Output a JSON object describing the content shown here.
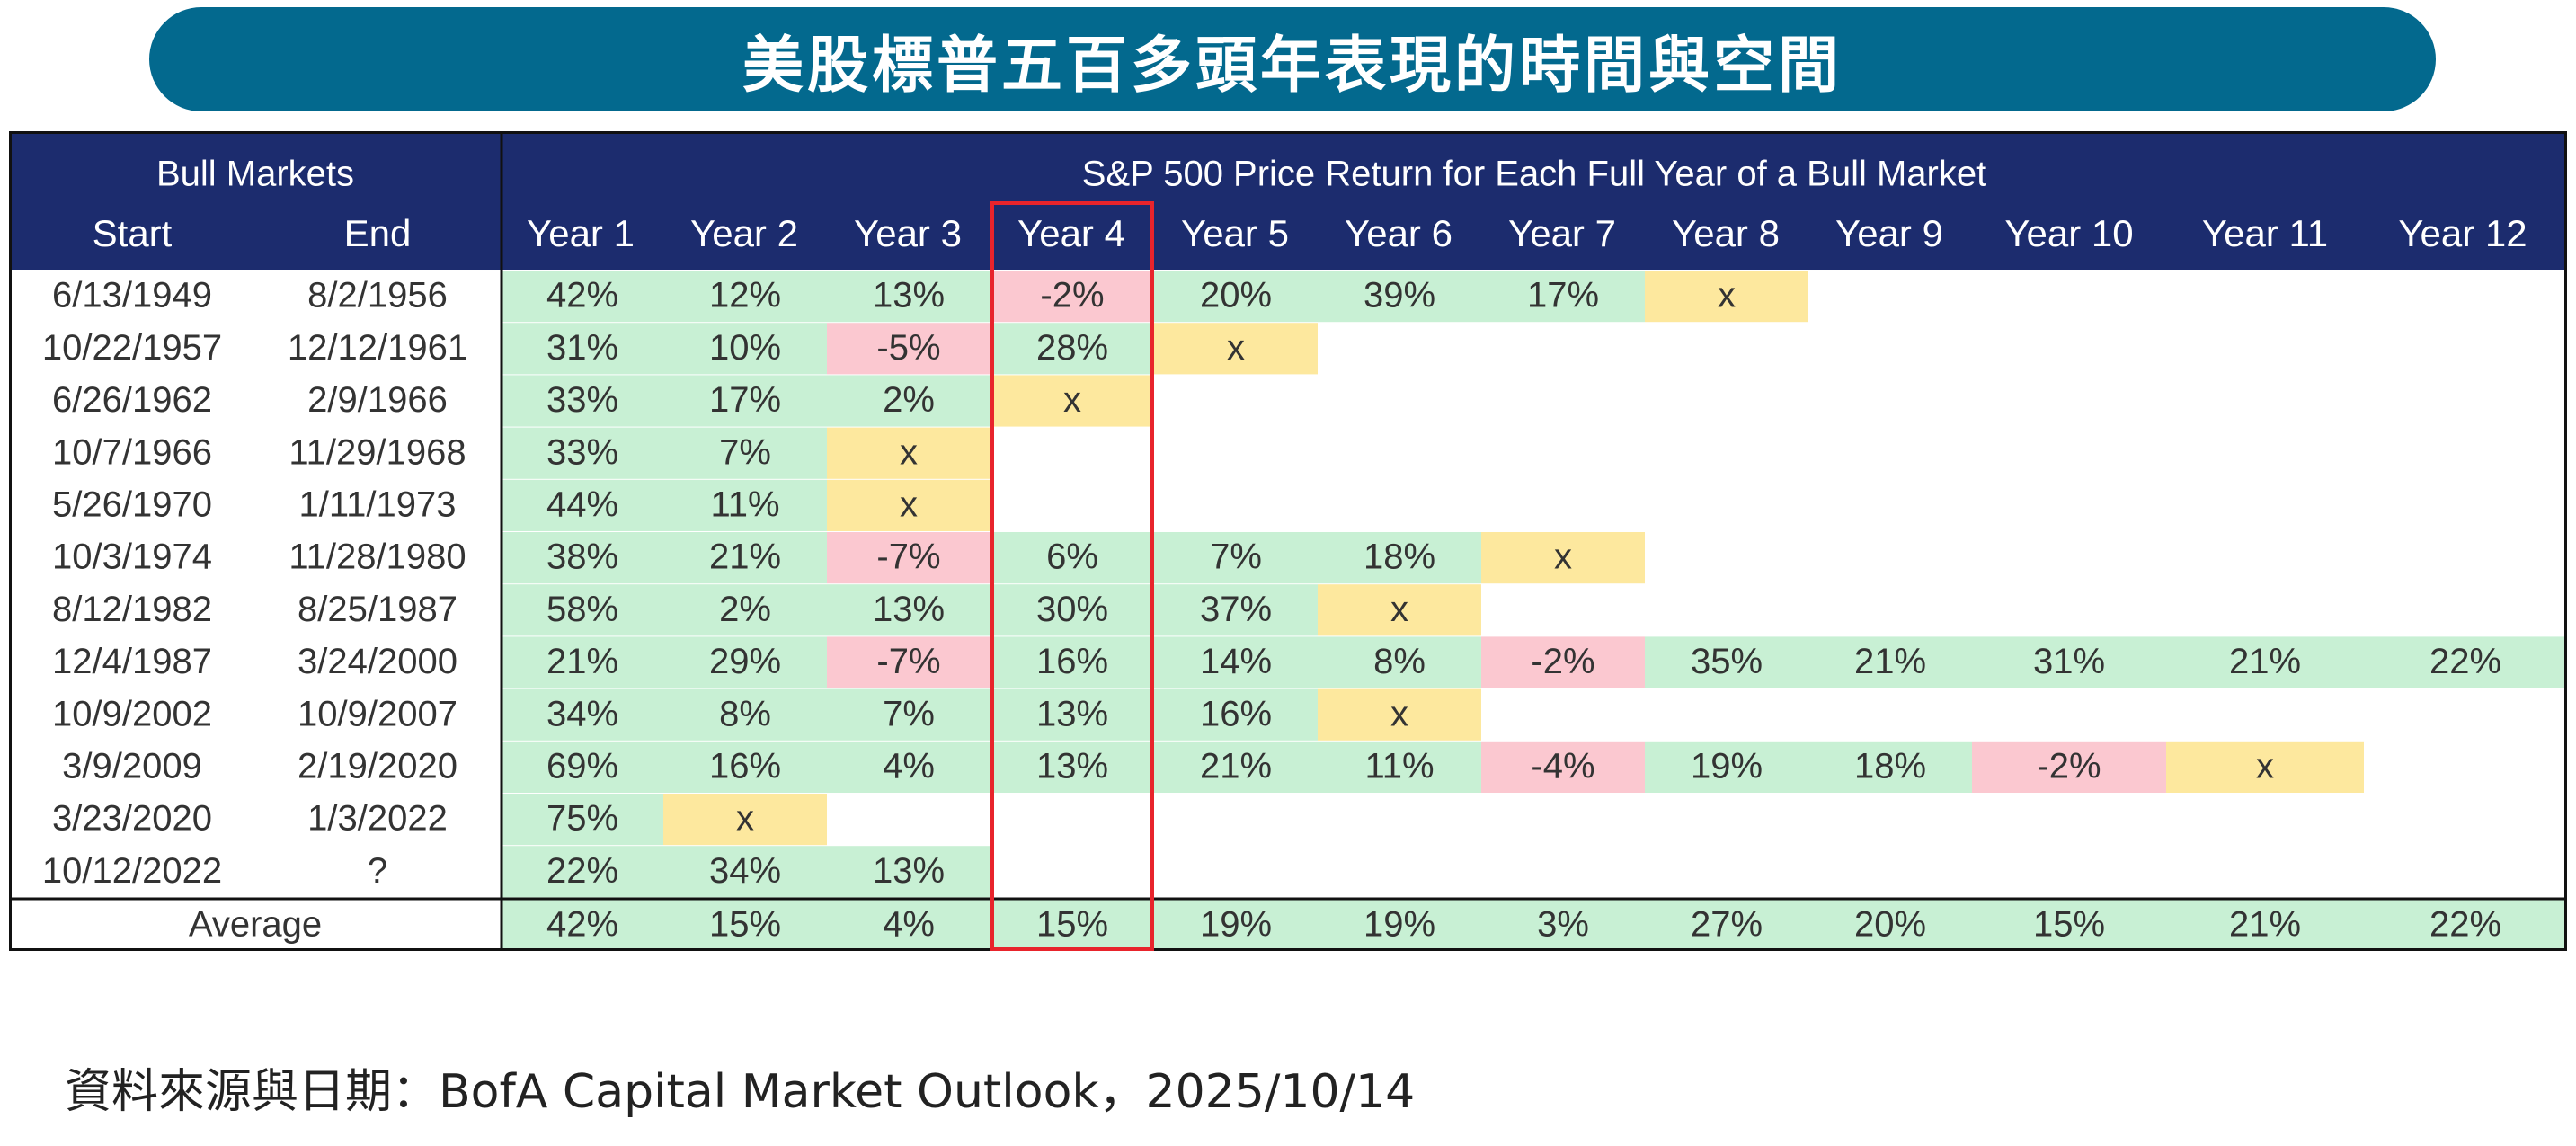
{
  "title": "美股標普五百多頭年表現的時間與空間",
  "source": "資料來源與日期：BofA Capital Market Outlook，2025/10/14",
  "colors": {
    "header_bg": "#1c2c6e",
    "header_text": "#ffffff",
    "positive": "#c8f0d4",
    "negative": "#fbc8d0",
    "end": "#fde89e",
    "highlight_border": "#e8242c",
    "text": "#333333"
  },
  "chart_data": {
    "type": "table",
    "header_group_left": "Bull Markets",
    "header_group_right": "S&P 500 Price Return for Each Full Year of a Bull Market",
    "columns": [
      "Start",
      "End",
      "Year 1",
      "Year 2",
      "Year 3",
      "Year 4",
      "Year 5",
      "Year 6",
      "Year 7",
      "Year 8",
      "Year 9",
      "Year 10",
      "Year 11",
      "Year 12"
    ],
    "highlight_column": "Year 4",
    "rows": [
      {
        "start": "6/13/1949",
        "end": "8/2/1956",
        "values": [
          "42%",
          "12%",
          "13%",
          "-2%",
          "20%",
          "39%",
          "17%",
          "x"
        ]
      },
      {
        "start": "10/22/1957",
        "end": "12/12/1961",
        "values": [
          "31%",
          "10%",
          "-5%",
          "28%",
          "x"
        ]
      },
      {
        "start": "6/26/1962",
        "end": "2/9/1966",
        "values": [
          "33%",
          "17%",
          "2%",
          "x"
        ]
      },
      {
        "start": "10/7/1966",
        "end": "11/29/1968",
        "values": [
          "33%",
          "7%",
          "x"
        ]
      },
      {
        "start": "5/26/1970",
        "end": "1/11/1973",
        "values": [
          "44%",
          "11%",
          "x"
        ]
      },
      {
        "start": "10/3/1974",
        "end": "11/28/1980",
        "values": [
          "38%",
          "21%",
          "-7%",
          "6%",
          "7%",
          "18%",
          "x"
        ]
      },
      {
        "start": "8/12/1982",
        "end": "8/25/1987",
        "values": [
          "58%",
          "2%",
          "13%",
          "30%",
          "37%",
          "x"
        ]
      },
      {
        "start": "12/4/1987",
        "end": "3/24/2000",
        "values": [
          "21%",
          "29%",
          "-7%",
          "16%",
          "14%",
          "8%",
          "-2%",
          "35%",
          "21%",
          "31%",
          "21%",
          "22%"
        ]
      },
      {
        "start": "10/9/2002",
        "end": "10/9/2007",
        "values": [
          "34%",
          "8%",
          "7%",
          "13%",
          "16%",
          "x"
        ]
      },
      {
        "start": "3/9/2009",
        "end": "2/19/2020",
        "values": [
          "69%",
          "16%",
          "4%",
          "13%",
          "21%",
          "11%",
          "-4%",
          "19%",
          "18%",
          "-2%",
          "x"
        ]
      },
      {
        "start": "3/23/2020",
        "end": "1/3/2022",
        "values": [
          "75%",
          "x"
        ]
      },
      {
        "start": "10/12/2022",
        "end": "?",
        "values": [
          "22%",
          "34%",
          "13%"
        ]
      }
    ],
    "average_label": "Average",
    "average": [
      "42%",
      "15%",
      "4%",
      "15%",
      "19%",
      "19%",
      "3%",
      "27%",
      "20%",
      "15%",
      "21%",
      "22%"
    ]
  }
}
